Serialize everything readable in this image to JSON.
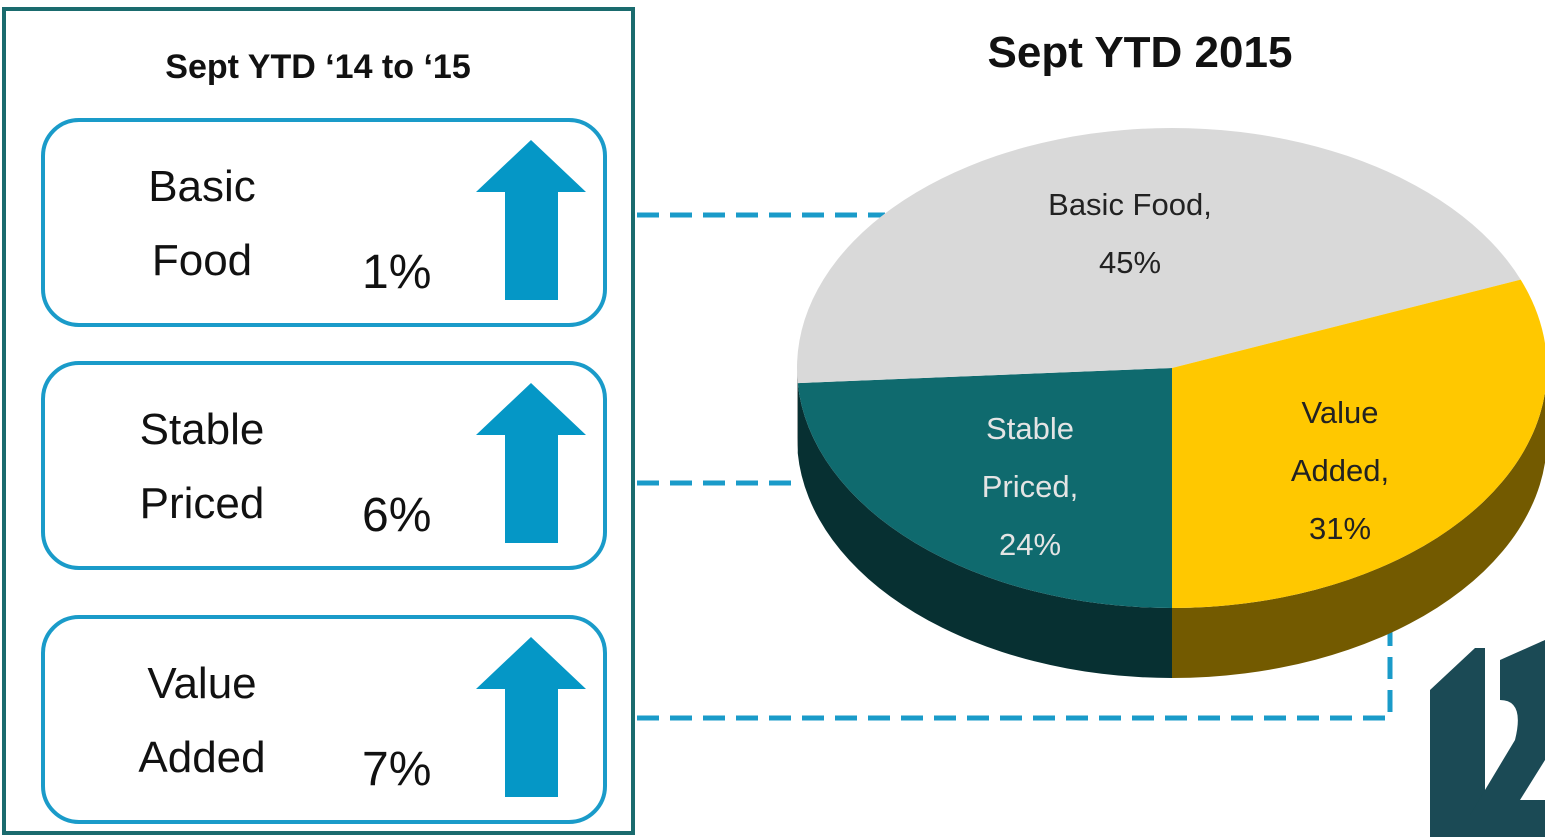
{
  "panel": {
    "title": "Sept YTD ‘14 to ‘15",
    "items": [
      {
        "label": "Basic Food",
        "change": "1%"
      },
      {
        "label": "Stable Priced",
        "change": "6%"
      },
      {
        "label": "Value Added",
        "change": "7%"
      }
    ]
  },
  "chart_data": {
    "type": "pie",
    "title": "Sept YTD 2015",
    "categories": [
      "Basic Food",
      "Stable Priced",
      "Value Added"
    ],
    "values": [
      45,
      24,
      31
    ],
    "value_labels": [
      "Basic Food, 45%",
      "Stable Priced, 24%",
      "Value Added, 31%"
    ],
    "colors": [
      "#d9d9d9",
      "#0f6a6e",
      "#ffc800"
    ]
  }
}
